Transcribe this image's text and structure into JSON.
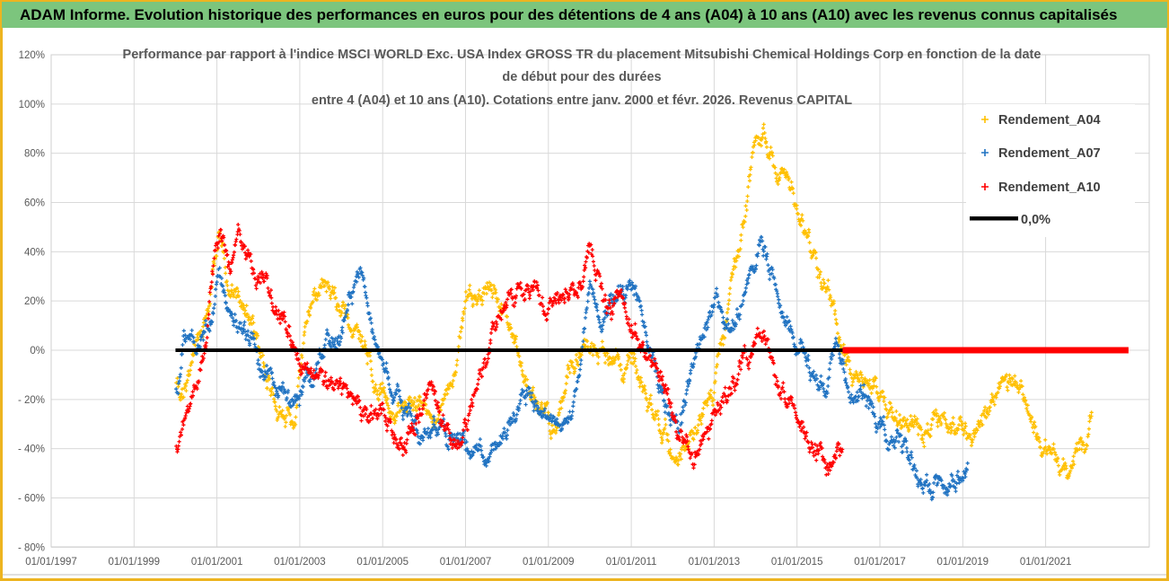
{
  "header": {
    "title": "ADAM Informe. Evolution historique des performances en euros pour des détentions de 4 ans (A04) à 10 ans (A10) avec les revenus connus capitalisés",
    "bg_color": "#7CC57D",
    "frame_color": "#EDB420"
  },
  "chart_data": {
    "type": "scatter",
    "title_lines": [
      "Performance par rapport à l'indice MSCI WORLD Exc. USA Index GROSS TR  du placement Mitsubishi Chemical Holdings Corp en fonction de la date",
      "de début pour des durées",
      "entre 4 (A04) et 10 ans (A10).  Cotations entre janv. 2000 et févr. 2026. Revenus CAPITAL"
    ],
    "x_axis": {
      "tick_labels": [
        "01/01/1997",
        "01/01/1999",
        "01/01/2001",
        "01/01/2003",
        "01/01/2005",
        "01/01/2007",
        "01/01/2009",
        "01/01/2011",
        "01/01/2013",
        "01/01/2015",
        "01/01/2017",
        "01/01/2019",
        "01/01/2021"
      ],
      "tick_years": [
        1997,
        1999,
        2001,
        2003,
        2005,
        2007,
        2009,
        2011,
        2013,
        2015,
        2017,
        2019,
        2021
      ],
      "range_years": [
        1997,
        2023.5
      ],
      "gridlines": true
    },
    "y_axis": {
      "tick_labels": [
        "120%",
        "100%",
        "80%",
        "60%",
        "40%",
        "20%",
        "0%",
        "- 20%",
        "- 40%",
        "- 60%",
        "- 80%"
      ],
      "tick_values": [
        120,
        100,
        80,
        60,
        40,
        20,
        0,
        -20,
        -40,
        -60,
        -80
      ],
      "range": [
        -80,
        120
      ],
      "gridlines": true
    },
    "legend": {
      "items": [
        {
          "label": "Rendement_A04",
          "color": "#FFC000",
          "marker": "plus"
        },
        {
          "label": "Rendement_A07",
          "color": "#2173C2",
          "marker": "plus"
        },
        {
          "label": "Rendement_A10",
          "color": "#FF0000",
          "marker": "plus"
        },
        {
          "label": "0,0%",
          "color": "#000000",
          "marker": "line"
        }
      ]
    },
    "zero_lines": [
      {
        "color": "#000000",
        "value": 0,
        "from_year": 2000.0,
        "to_year": 2016.1,
        "width": 4
      },
      {
        "color": "#FF0000",
        "value": 0,
        "from_year": 2016.1,
        "to_year": 2023.0,
        "width": 7
      }
    ],
    "series": [
      {
        "name": "Rendement_A04",
        "color": "#FFC000",
        "start": 2000.02,
        "end": 2022.12,
        "spread": 8,
        "trend_anchors": [
          [
            2000.05,
            -12
          ],
          [
            2000.4,
            -8
          ],
          [
            2000.8,
            10
          ],
          [
            2001.05,
            50
          ],
          [
            2001.3,
            28
          ],
          [
            2001.6,
            25
          ],
          [
            2001.9,
            10
          ],
          [
            2002.2,
            -10
          ],
          [
            2002.5,
            -22
          ],
          [
            2002.9,
            -28
          ],
          [
            2003.2,
            15
          ],
          [
            2003.5,
            25
          ],
          [
            2003.9,
            20
          ],
          [
            2004.3,
            5
          ],
          [
            2004.7,
            -10
          ],
          [
            2005.1,
            -18
          ],
          [
            2005.5,
            -25
          ],
          [
            2005.9,
            -20
          ],
          [
            2006.3,
            -25
          ],
          [
            2006.7,
            -12
          ],
          [
            2007.0,
            25
          ],
          [
            2007.3,
            15
          ],
          [
            2007.7,
            25
          ],
          [
            2008.1,
            5
          ],
          [
            2008.5,
            -12
          ],
          [
            2008.9,
            -25
          ],
          [
            2009.1,
            -33
          ],
          [
            2009.5,
            -10
          ],
          [
            2009.9,
            0
          ],
          [
            2010.3,
            -3
          ],
          [
            2010.8,
            -8
          ],
          [
            2011.2,
            -12
          ],
          [
            2011.7,
            -28
          ],
          [
            2012.1,
            -38
          ],
          [
            2012.6,
            -30
          ],
          [
            2013.0,
            -18
          ],
          [
            2013.4,
            20
          ],
          [
            2013.8,
            60
          ],
          [
            2014.0,
            80
          ],
          [
            2014.2,
            88
          ],
          [
            2014.5,
            75
          ],
          [
            2014.8,
            62
          ],
          [
            2015.1,
            50
          ],
          [
            2015.4,
            40
          ],
          [
            2015.7,
            25
          ],
          [
            2016.0,
            8
          ],
          [
            2016.3,
            -5
          ],
          [
            2016.7,
            -14
          ],
          [
            2017.1,
            -20
          ],
          [
            2017.5,
            -25
          ],
          [
            2018.0,
            -38
          ],
          [
            2018.4,
            -32
          ],
          [
            2018.8,
            -34
          ],
          [
            2019.2,
            -40
          ],
          [
            2019.6,
            -26
          ],
          [
            2020.0,
            -19
          ],
          [
            2020.4,
            -20
          ],
          [
            2020.8,
            -32
          ],
          [
            2021.2,
            -40
          ],
          [
            2021.5,
            -44
          ],
          [
            2021.8,
            -36
          ],
          [
            2022.1,
            -28
          ]
        ]
      },
      {
        "name": "Rendement_A07",
        "color": "#2173C2",
        "start": 2000.02,
        "end": 2019.12,
        "spread": 8,
        "trend_anchors": [
          [
            2000.05,
            -15
          ],
          [
            2000.2,
            8
          ],
          [
            2000.5,
            -5
          ],
          [
            2000.8,
            5
          ],
          [
            2001.05,
            25
          ],
          [
            2001.3,
            15
          ],
          [
            2001.6,
            10
          ],
          [
            2002.0,
            -5
          ],
          [
            2002.4,
            -18
          ],
          [
            2002.8,
            -25
          ],
          [
            2003.2,
            -10
          ],
          [
            2003.6,
            3
          ],
          [
            2004.0,
            12
          ],
          [
            2004.45,
            33
          ],
          [
            2004.8,
            5
          ],
          [
            2005.2,
            -15
          ],
          [
            2005.6,
            -28
          ],
          [
            2006.0,
            -35
          ],
          [
            2006.4,
            -30
          ],
          [
            2006.8,
            -38
          ],
          [
            2007.2,
            -44
          ],
          [
            2007.6,
            -36
          ],
          [
            2008.0,
            -30
          ],
          [
            2008.6,
            -15
          ],
          [
            2009.0,
            -20
          ],
          [
            2009.4,
            -28
          ],
          [
            2009.7,
            -15
          ],
          [
            2010.0,
            35
          ],
          [
            2010.3,
            15
          ],
          [
            2010.7,
            25
          ],
          [
            2011.0,
            25
          ],
          [
            2011.4,
            0
          ],
          [
            2011.8,
            -20
          ],
          [
            2012.2,
            -25
          ],
          [
            2012.6,
            5
          ],
          [
            2013.0,
            22
          ],
          [
            2013.4,
            10
          ],
          [
            2013.8,
            25
          ],
          [
            2014.1,
            40
          ],
          [
            2014.5,
            28
          ],
          [
            2014.9,
            10
          ],
          [
            2015.3,
            -8
          ],
          [
            2015.7,
            -16
          ],
          [
            2016.0,
            0
          ],
          [
            2016.4,
            -18
          ],
          [
            2016.9,
            -30
          ],
          [
            2017.4,
            -40
          ],
          [
            2017.9,
            -50
          ],
          [
            2018.3,
            -54
          ],
          [
            2018.7,
            -51
          ],
          [
            2019.1,
            -44
          ]
        ]
      },
      {
        "name": "Rendement_A10",
        "color": "#FF0000",
        "start": 2000.02,
        "end": 2016.1,
        "spread": 8,
        "trend_anchors": [
          [
            2000.05,
            -42
          ],
          [
            2000.35,
            -25
          ],
          [
            2000.7,
            -5
          ],
          [
            2001.0,
            40
          ],
          [
            2001.1,
            52
          ],
          [
            2001.3,
            30
          ],
          [
            2001.55,
            48
          ],
          [
            2001.9,
            28
          ],
          [
            2002.2,
            22
          ],
          [
            2002.6,
            8
          ],
          [
            2003.0,
            -8
          ],
          [
            2003.5,
            -16
          ],
          [
            2004.0,
            -20
          ],
          [
            2004.5,
            -30
          ],
          [
            2005.0,
            -30
          ],
          [
            2005.5,
            -40
          ],
          [
            2005.9,
            -22
          ],
          [
            2006.2,
            -16
          ],
          [
            2006.5,
            -33
          ],
          [
            2006.9,
            -30
          ],
          [
            2007.3,
            -12
          ],
          [
            2007.7,
            8
          ],
          [
            2008.1,
            25
          ],
          [
            2008.5,
            25
          ],
          [
            2008.9,
            18
          ],
          [
            2009.3,
            26
          ],
          [
            2009.7,
            22
          ],
          [
            2010.0,
            38
          ],
          [
            2010.4,
            22
          ],
          [
            2010.8,
            15
          ],
          [
            2011.2,
            8
          ],
          [
            2011.6,
            -10
          ],
          [
            2012.0,
            -28
          ],
          [
            2012.5,
            -40
          ],
          [
            2012.9,
            -34
          ],
          [
            2013.3,
            -22
          ],
          [
            2013.7,
            -8
          ],
          [
            2014.0,
            4
          ],
          [
            2014.3,
            2
          ],
          [
            2014.7,
            -15
          ],
          [
            2015.1,
            -28
          ],
          [
            2015.5,
            -40
          ],
          [
            2015.8,
            -44
          ],
          [
            2016.05,
            -40
          ]
        ]
      }
    ]
  }
}
